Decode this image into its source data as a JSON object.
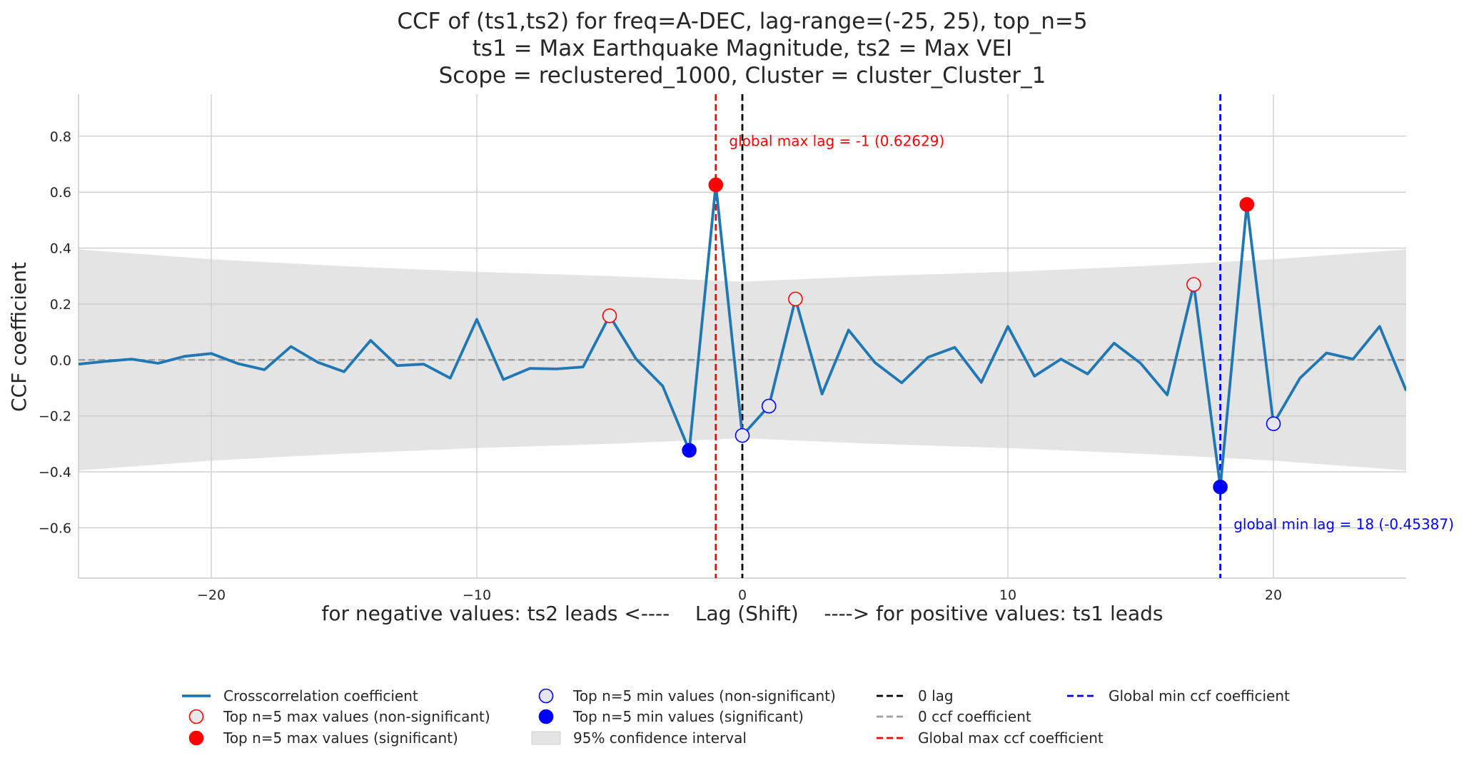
{
  "chart_data": {
    "type": "line",
    "title_lines": [
      "CCF of (ts1,ts2) for freq=A-DEC, lag-range=(-25, 25), top_n=5",
      "ts1 = Max Earthquake Magnitude, ts2 = Max VEI",
      "Scope = reclustered_1000, Cluster = cluster_Cluster_1"
    ],
    "xlabel": "for negative values: ts2 leads <----    Lag (Shift)    ----> for positive values: ts1 leads",
    "ylabel": "CCF coefficient",
    "xlim": [
      -25,
      25
    ],
    "ylim": [
      -0.78,
      0.95
    ],
    "xticks": [
      -20,
      -10,
      0,
      10,
      20
    ],
    "xtick_labels": [
      "−20",
      "−10",
      "0",
      "10",
      "20"
    ],
    "yticks": [
      -0.6,
      -0.4,
      -0.2,
      0.0,
      0.2,
      0.4,
      0.6,
      0.8
    ],
    "ytick_labels": [
      "−0.6",
      "−0.4",
      "−0.2",
      "0.0",
      "0.2",
      "0.4",
      "0.6",
      "0.8"
    ],
    "grid": true,
    "x": [
      -25,
      -24,
      -23,
      -22,
      -21,
      -20,
      -19,
      -18,
      -17,
      -16,
      -15,
      -14,
      -13,
      -12,
      -11,
      -10,
      -9,
      -8,
      -7,
      -6,
      -5,
      -4,
      -3,
      -2,
      -1,
      0,
      1,
      2,
      3,
      4,
      5,
      6,
      7,
      8,
      9,
      10,
      11,
      12,
      13,
      14,
      15,
      16,
      17,
      18,
      19,
      20,
      21,
      22,
      23,
      24,
      25
    ],
    "series": [
      {
        "name": "Crosscorrelation coefficient",
        "color": "#1f77b4",
        "values": [
          -0.015,
          -0.005,
          0.003,
          -0.012,
          0.013,
          0.023,
          -0.013,
          -0.035,
          0.048,
          -0.008,
          -0.042,
          0.07,
          -0.02,
          -0.015,
          -0.065,
          0.145,
          -0.07,
          -0.03,
          -0.032,
          -0.025,
          0.158,
          0.003,
          -0.093,
          -0.323,
          0.626,
          -0.27,
          -0.165,
          0.218,
          -0.122,
          0.107,
          -0.01,
          -0.082,
          0.01,
          0.045,
          -0.08,
          0.12,
          -0.058,
          0.003,
          -0.05,
          0.06,
          -0.012,
          -0.125,
          0.27,
          -0.454,
          0.556,
          -0.228,
          -0.065,
          0.025,
          0.003,
          0.12,
          -0.11
        ]
      }
    ],
    "confidence_interval": {
      "label": "95% confidence interval",
      "color": "#e4e4e4",
      "x": [
        -25,
        -20,
        -15,
        -10,
        -5,
        0,
        5,
        10,
        15,
        20,
        25
      ],
      "upper": [
        0.395,
        0.36,
        0.335,
        0.315,
        0.3,
        0.28,
        0.3,
        0.315,
        0.335,
        0.36,
        0.395
      ],
      "lower": [
        -0.395,
        -0.36,
        -0.335,
        -0.315,
        -0.3,
        -0.28,
        -0.3,
        -0.315,
        -0.335,
        -0.36,
        -0.395
      ]
    },
    "top_max_nonsignificant": {
      "x": [
        -5,
        2,
        17
      ],
      "y": [
        0.158,
        0.218,
        0.27
      ]
    },
    "top_max_significant": {
      "x": [
        -1,
        19
      ],
      "y": [
        0.626,
        0.556
      ]
    },
    "top_min_nonsignificant": {
      "x": [
        0,
        1,
        20
      ],
      "y": [
        -0.27,
        -0.165,
        -0.228
      ]
    },
    "top_min_significant": {
      "x": [
        -2,
        18
      ],
      "y": [
        -0.323,
        -0.454
      ]
    },
    "vlines": [
      {
        "x": 0,
        "color": "#000000",
        "label": "0 lag"
      },
      {
        "x": -1,
        "color": "#ff0000",
        "label": "Global max ccf coefficient"
      },
      {
        "x": 18,
        "color": "#0000ff",
        "label": "Global min ccf coefficient"
      }
    ],
    "hline": {
      "y": 0,
      "color": "#a0a0a0",
      "label": "0 ccf coefficient"
    },
    "annotations": [
      {
        "text": "global max lag = -1 (0.62629)",
        "x": -0.5,
        "y": 0.765,
        "color": "#ff0000"
      },
      {
        "text": "global min lag = 18 (-0.45387)",
        "x": 18.5,
        "y": -0.605,
        "color": "#0000ff"
      }
    ],
    "legend": {
      "placement": "bottom",
      "entries": [
        {
          "label": "Crosscorrelation coefficient",
          "kind": "line",
          "color": "#1f77b4"
        },
        {
          "label": "Top n=5 max values (non-significant)",
          "kind": "open-circle",
          "color": "#ff0000"
        },
        {
          "label": "Top n=5 max values (significant)",
          "kind": "filled-circle",
          "color": "#ff0000"
        },
        {
          "label": "Top n=5 min values (non-significant)",
          "kind": "open-circle",
          "color": "#0000ff"
        },
        {
          "label": "Top n=5 min values (significant)",
          "kind": "filled-circle",
          "color": "#0000ff"
        },
        {
          "label": "95% confidence interval",
          "kind": "patch",
          "color": "#e4e4e4"
        },
        {
          "label": "0 lag",
          "kind": "dashed",
          "color": "#000000"
        },
        {
          "label": "0 ccf coefficient",
          "kind": "dashed",
          "color": "#a0a0a0"
        },
        {
          "label": "Global max ccf coefficient",
          "kind": "dashed",
          "color": "#ff0000"
        },
        {
          "label": "Global min ccf coefficient",
          "kind": "dashed",
          "color": "#0000ff"
        }
      ]
    }
  }
}
